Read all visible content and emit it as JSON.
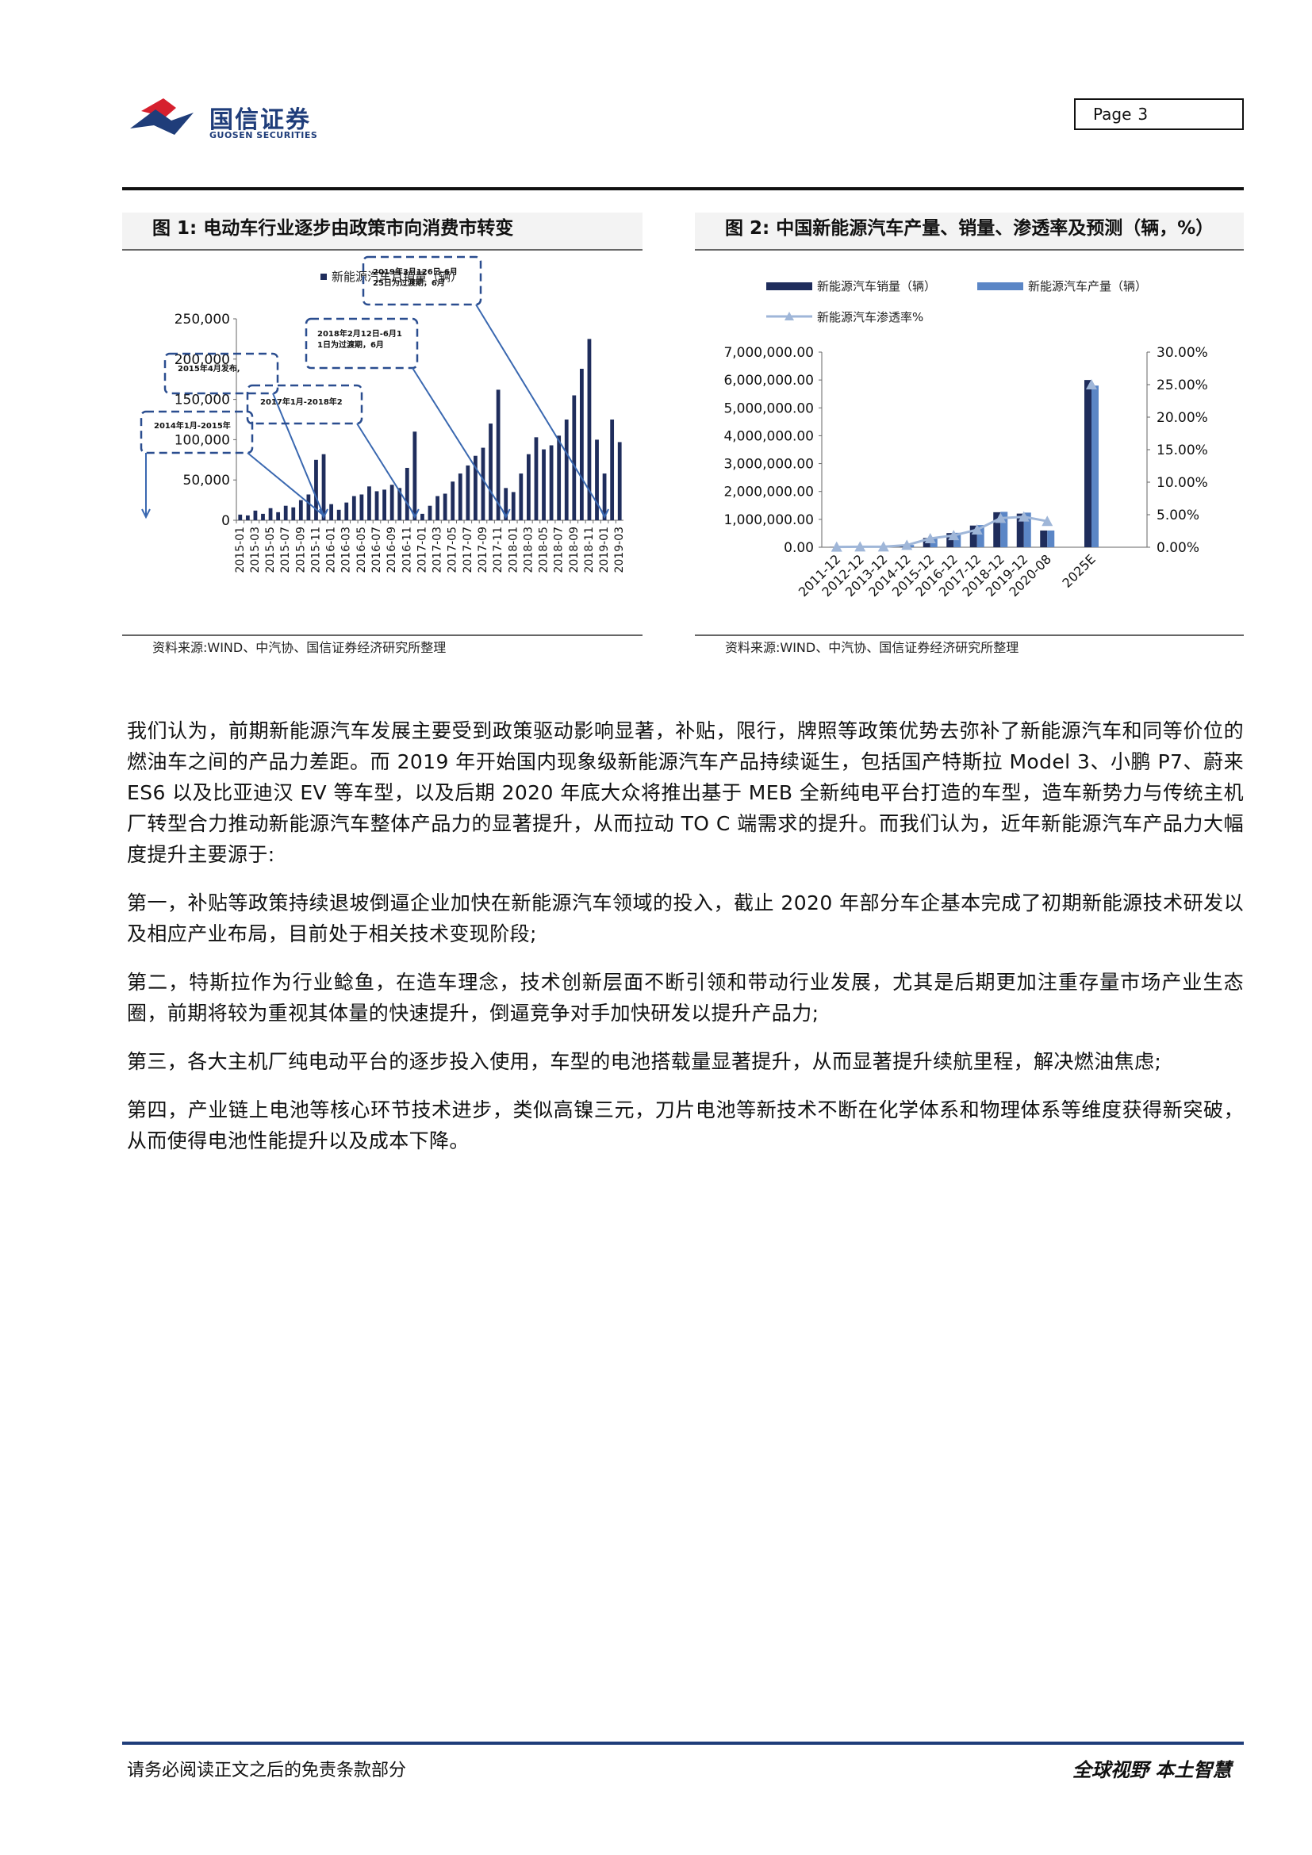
{
  "header": {
    "logo_name": "国信证券",
    "logo_name_en": "GUOSEN SECURITIES",
    "page_label": "Page",
    "page_number": "3",
    "colors": {
      "logo_blue": "#1f3d7a",
      "logo_red": "#d6202e"
    }
  },
  "figure1": {
    "title": "图 1:  电动车行业逐步由政策市向消费市转变",
    "source": "资料来源:WIND、中汽协、国信证券经济研究所整理",
    "chart_data": {
      "type": "bar",
      "series": [
        {
          "name": "新能源汽车月销量（辆）",
          "color": "#1f2d5c",
          "values": [
            7000,
            6000,
            12000,
            8000,
            15000,
            10000,
            18000,
            16000,
            25000,
            32000,
            75000,
            82000,
            20000,
            13000,
            22000,
            30000,
            32000,
            42000,
            36000,
            38000,
            44000,
            40000,
            65000,
            110000,
            8000,
            18000,
            30000,
            33000,
            48000,
            58000,
            68000,
            80000,
            90000,
            120000,
            162000,
            40000,
            35000,
            58000,
            82000,
            103000,
            88000,
            93000,
            105000,
            125000,
            155000,
            188000,
            225000,
            100000,
            58000,
            125000,
            97000
          ]
        }
      ],
      "categories": [
        "2015-01",
        "2015-02",
        "2015-03",
        "2015-04",
        "2015-05",
        "2015-06",
        "2015-07",
        "2015-08",
        "2015-09",
        "2015-10",
        "2015-11",
        "2015-12",
        "2016-01",
        "2016-02",
        "2016-03",
        "2016-04",
        "2016-05",
        "2016-06",
        "2016-07",
        "2016-08",
        "2016-09",
        "2016-10",
        "2016-11",
        "2016-12",
        "2017-01",
        "2017-02",
        "2017-03",
        "2017-04",
        "2017-05",
        "2017-06",
        "2017-07",
        "2017-08",
        "2017-09",
        "2017-10",
        "2017-11",
        "2017-12",
        "2018-01",
        "2018-02",
        "2018-03",
        "2018-04",
        "2018-05",
        "2018-06",
        "2018-07",
        "2018-08",
        "2018-09",
        "2018-10",
        "2018-11",
        "2018-12",
        "2019-01",
        "2019-02",
        "2019-03"
      ],
      "y_ticks": [
        "0",
        "50,000",
        "100,000",
        "150,000",
        "200,000",
        "250,000"
      ],
      "ylim": [
        0,
        250000
      ],
      "legend": "top",
      "annotations": [
        {
          "text": "2014年1月-2015年",
          "target_index": 11
        },
        {
          "text": "2015年4月发布,",
          "target_index": 11
        },
        {
          "text": "2017年1月-2018年2",
          "target_index": 23
        },
        {
          "text": "2018年2月12日-6月11日为过渡期，6月",
          "target_index": 35
        },
        {
          "text": "2019年3月126日-6月25日为过渡期，6月",
          "target_index": 48
        }
      ]
    }
  },
  "figure2": {
    "title": "图 2:  中国新能源汽车产量、销量、渗透率及预测（辆，%）",
    "source": "资料来源:WIND、中汽协、国信证券经济研究所整理",
    "chart_data": {
      "type": "bar",
      "categories": [
        "2011-12",
        "2012-12",
        "2013-12",
        "2014-12",
        "2015-12",
        "2016-12",
        "2017-12",
        "2018-12",
        "2019-12",
        "2020-08",
        "2025E"
      ],
      "series": [
        {
          "name": "新能源汽车销量（辆）",
          "color": "#1f2d5c",
          "values": [
            8159,
            12791,
            17642,
            74763,
            331092,
            507000,
            777000,
            1256000,
            1206000,
            600000,
            6000000
          ]
        },
        {
          "name": "新能源汽车产量（辆）",
          "color": "#5b86c6",
          "values": [
            8368,
            12552,
            17533,
            78499,
            340471,
            517000,
            794000,
            1270000,
            1242000,
            600000,
            5800000
          ]
        },
        {
          "name": "新能源汽车渗透率%",
          "color": "#9fb6d8",
          "axis": "right",
          "values": [
            0.04,
            0.07,
            0.08,
            0.32,
            1.34,
            1.81,
            2.69,
            4.47,
            4.68,
            4.0,
            25.0
          ]
        }
      ],
      "y_ticks": [
        "0.00",
        "1,000,000.00",
        "2,000,000.00",
        "3,000,000.00",
        "4,000,000.00",
        "5,000,000.00",
        "6,000,000.00",
        "7,000,000.00"
      ],
      "ylim": [
        0,
        7000000
      ],
      "y2_ticks": [
        "0.00%",
        "5.00%",
        "10.00%",
        "15.00%",
        "20.00%",
        "25.00%",
        "30.00%"
      ],
      "y2lim": [
        0,
        30
      ],
      "legend": "top"
    }
  },
  "body": {
    "paragraphs": [
      "我们认为，前期新能源汽车发展主要受到政策驱动影响显著，补贴，限行，牌照等政策优势去弥补了新能源汽车和同等价位的燃油车之间的产品力差距。而 2019 年开始国内现象级新能源汽车产品持续诞生，包括国产特斯拉 Model 3、小鹏 P7、蔚来 ES6 以及比亚迪汉 EV 等车型，以及后期 2020 年底大众将推出基于 MEB 全新纯电平台打造的车型，造车新势力与传统主机厂转型合力推动新能源汽车整体产品力的显著提升，从而拉动 TO C 端需求的提升。而我们认为，近年新能源汽车产品力大幅度提升主要源于:",
      "第一，补贴等政策持续退坡倒逼企业加快在新能源汽车领域的投入，截止 2020 年部分车企基本完成了初期新能源技术研发以及相应产业布局，目前处于相关技术变现阶段;",
      "第二，特斯拉作为行业鲶鱼，在造车理念，技术创新层面不断引领和带动行业发展，尤其是后期更加注重存量市场产业生态圈，前期将较为重视其体量的快速提升，倒逼竞争对手加快研发以提升产品力;",
      "第三，各大主机厂纯电动平台的逐步投入使用，车型的电池搭载量显著提升，从而显著提升续航里程，解决燃油焦虑;",
      "第四，产业链上电池等核心环节技术进步，类似高镍三元，刀片电池等新技术不断在化学体系和物理体系等维度获得新突破，从而使得电池性能提升以及成本下降。"
    ]
  },
  "footer": {
    "disclaimer": "请务必阅读正文之后的免责条款部分",
    "slogan": "全球视野  本土智慧"
  }
}
